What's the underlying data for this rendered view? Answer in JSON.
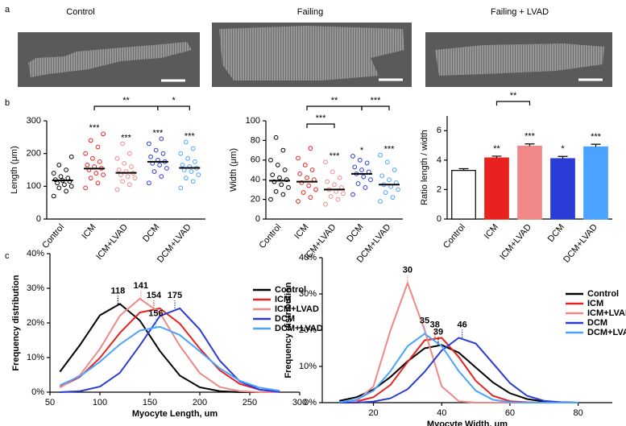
{
  "panel_labels": [
    "a",
    "b",
    "c"
  ],
  "image_titles": [
    "Control",
    "Failing",
    "Failing + LVAD"
  ],
  "chart_data": [
    {
      "type": "dot",
      "ylabel": "Length (μm)",
      "categories": [
        "Control",
        "ICM",
        "ICM+LVAD",
        "DCM",
        "DCM+LVAD"
      ],
      "colors": [
        "#000000",
        "#e8231f",
        "#f08888",
        "#2a3bd6",
        "#4aa3ff"
      ],
      "points": [
        [
          70,
          85,
          95,
          100,
          105,
          110,
          115,
          118,
          120,
          125,
          130,
          140,
          150,
          165,
          190
        ],
        [
          95,
          110,
          125,
          135,
          140,
          150,
          155,
          160,
          165,
          175,
          185,
          200,
          220,
          240,
          260
        ],
        [
          90,
          105,
          115,
          125,
          130,
          135,
          140,
          145,
          150,
          160,
          170,
          185,
          200,
          230
        ],
        [
          110,
          130,
          145,
          155,
          165,
          170,
          175,
          180,
          190,
          200,
          210,
          230,
          245
        ],
        [
          95,
          115,
          125,
          135,
          145,
          150,
          155,
          160,
          165,
          175,
          185,
          200,
          215,
          235
        ]
      ],
      "means": [
        118,
        154,
        141,
        175,
        156
      ],
      "stars": [
        null,
        "***",
        "***",
        "***",
        "***"
      ],
      "brackets": [
        {
          "from": 1,
          "to": 3,
          "label": "**"
        },
        {
          "from": 3,
          "to": 4,
          "label": "*"
        }
      ],
      "ylim": [
        0,
        300
      ],
      "yticks": [
        0,
        100,
        200,
        300
      ]
    },
    {
      "type": "dot",
      "ylabel": "Width (μm)",
      "categories": [
        "Control",
        "ICM",
        "ICM+LVAD",
        "DCM",
        "DCM+LVAD"
      ],
      "colors": [
        "#000000",
        "#e8231f",
        "#f08888",
        "#2a3bd6",
        "#4aa3ff"
      ],
      "points": [
        [
          20,
          25,
          28,
          32,
          35,
          38,
          40,
          42,
          45,
          50,
          55,
          60,
          70,
          83
        ],
        [
          18,
          22,
          27,
          30,
          34,
          37,
          40,
          42,
          46,
          50,
          55,
          62,
          72
        ],
        [
          15,
          20,
          23,
          26,
          28,
          30,
          32,
          35,
          38,
          42,
          48,
          58
        ],
        [
          25,
          32,
          36,
          40,
          43,
          46,
          48,
          50,
          53,
          57,
          60,
          64
        ],
        [
          18,
          22,
          27,
          30,
          33,
          35,
          37,
          40,
          44,
          50,
          58,
          65
        ]
      ],
      "means": [
        39,
        38,
        30,
        46,
        35
      ],
      "stars": [
        null,
        null,
        "***",
        "*",
        "***"
      ],
      "brackets": [
        {
          "from": 1,
          "to": 3,
          "label": "**"
        },
        {
          "from": 3,
          "to": 4,
          "label": "***"
        },
        {
          "from": 1,
          "to": 2,
          "label": "***"
        }
      ],
      "ylim": [
        0,
        100
      ],
      "yticks": [
        0,
        20,
        40,
        60,
        80,
        100
      ]
    },
    {
      "type": "bar",
      "ylabel": "Ratio length / width",
      "categories": [
        "Control",
        "ICM",
        "ICM+LVAD",
        "DCM",
        "DCM+LVAD"
      ],
      "colors": [
        "#ffffff",
        "#e8231f",
        "#f08888",
        "#2a3bd6",
        "#4aa3ff"
      ],
      "values": [
        3.3,
        4.15,
        4.95,
        4.1,
        4.9
      ],
      "errors": [
        0.12,
        0.12,
        0.15,
        0.15,
        0.18
      ],
      "stars": [
        null,
        "**",
        "***",
        "*",
        "***"
      ],
      "brackets": [
        {
          "from": 1,
          "to": 2,
          "label": "**"
        }
      ],
      "ylim": [
        0,
        7
      ],
      "yticks": [
        0,
        2,
        4,
        6
      ]
    },
    {
      "type": "line",
      "xlabel": "Myocyte Length, um",
      "ylabel": "Frequency distribution",
      "x": [
        60,
        80,
        100,
        120,
        140,
        160,
        180,
        200,
        220,
        240,
        260,
        280
      ],
      "series": [
        {
          "name": "Control",
          "color": "#000000",
          "peak": 118,
          "values": [
            5.9,
            13.6,
            22.2,
            25.5,
            20.7,
            11.9,
            4.8,
            1.4,
            0.3,
            0,
            0,
            0
          ]
        },
        {
          "name": "ICM",
          "color": "#e8231f",
          "peak": 154,
          "values": [
            1.5,
            4.4,
            9.9,
            17.1,
            23.0,
            24.2,
            19.8,
            12.6,
            6.3,
            2.4,
            0.7,
            0.2
          ]
        },
        {
          "name": "ICM+LVAD",
          "color": "#f08888",
          "peak": 141,
          "values": [
            1.3,
            4.9,
            12.5,
            22.1,
            27.0,
            22.9,
            13.4,
            5.5,
            1.5,
            0.3,
            0,
            0
          ]
        },
        {
          "name": "DCM",
          "color": "#2a3bd6",
          "peak": 175,
          "values": [
            0,
            0.3,
            1.6,
            5.6,
            13.5,
            22.0,
            24.2,
            18.1,
            9.1,
            3.1,
            0.7,
            0.1
          ]
        },
        {
          "name": "DCM+LVAD",
          "color": "#4aa3ff",
          "peak": 156,
          "values": [
            2.0,
            4.6,
            8.8,
            13.8,
            17.8,
            18.9,
            16.5,
            11.8,
            6.9,
            3.3,
            1.3,
            0.4
          ]
        }
      ],
      "xlim": [
        50,
        300
      ],
      "xticks": [
        50,
        100,
        150,
        200,
        250,
        300
      ],
      "ylim": [
        0,
        40
      ],
      "yticks": [
        {
          "value": 0,
          "label": "0%"
        },
        {
          "value": 10,
          "label": "10%"
        },
        {
          "value": 20,
          "label": "20%"
        },
        {
          "value": 30,
          "label": "30%"
        },
        {
          "value": 40,
          "label": "40%"
        }
      ],
      "legend": "upper right"
    },
    {
      "type": "line",
      "xlabel": "Myocyte Width, um",
      "ylabel": "Frequency distribution",
      "x": [
        10,
        15,
        20,
        25,
        30,
        35,
        40,
        45,
        50,
        55,
        60,
        65,
        70,
        75,
        80
      ],
      "series": [
        {
          "name": "Control",
          "color": "#000000",
          "peak": 39,
          "values": [
            0.5,
            1.5,
            3.6,
            7.1,
            11.4,
            15.0,
            15.9,
            13.8,
            9.7,
            5.6,
            2.6,
            1.0,
            0.3,
            0.1,
            0
          ]
        },
        {
          "name": "ICM",
          "color": "#e8231f",
          "peak": 38,
          "values": [
            0,
            0.3,
            1.5,
            4.9,
            11.2,
            17.2,
            17.9,
            12.6,
            6.0,
            1.9,
            0.4,
            0.1,
            0,
            0,
            0
          ]
        },
        {
          "name": "ICM+LVAD",
          "color": "#f08888",
          "peak": 30,
          "values": [
            0,
            0.4,
            4.5,
            20.0,
            33.0,
            20.0,
            4.5,
            0.4,
            0,
            0,
            0,
            0,
            0,
            0,
            0
          ]
        },
        {
          "name": "DCM",
          "color": "#2a3bd6",
          "peak": 46,
          "values": [
            0,
            0,
            0.3,
            1.2,
            3.7,
            8.5,
            14.4,
            17.9,
            16.3,
            10.9,
            5.4,
            1.9,
            0.5,
            0.1,
            0
          ]
        },
        {
          "name": "DCM+LVAD",
          "color": "#4aa3ff",
          "peak": 35,
          "values": [
            0.1,
            0.8,
            3.3,
            8.7,
            15.6,
            19.0,
            15.6,
            8.7,
            3.3,
            0.8,
            0.1,
            0,
            0,
            0,
            0
          ]
        }
      ],
      "xlim": [
        5,
        90
      ],
      "xticks": [
        20,
        40,
        60,
        80
      ],
      "ylim": [
        0,
        40
      ],
      "yticks": [
        {
          "value": 0,
          "label": "0%"
        },
        {
          "value": 10,
          "label": "10%"
        },
        {
          "value": 20,
          "label": "20%"
        },
        {
          "value": 30,
          "label": "30%"
        },
        {
          "value": 40,
          "label": "40%"
        }
      ],
      "legend": "upper right"
    }
  ]
}
